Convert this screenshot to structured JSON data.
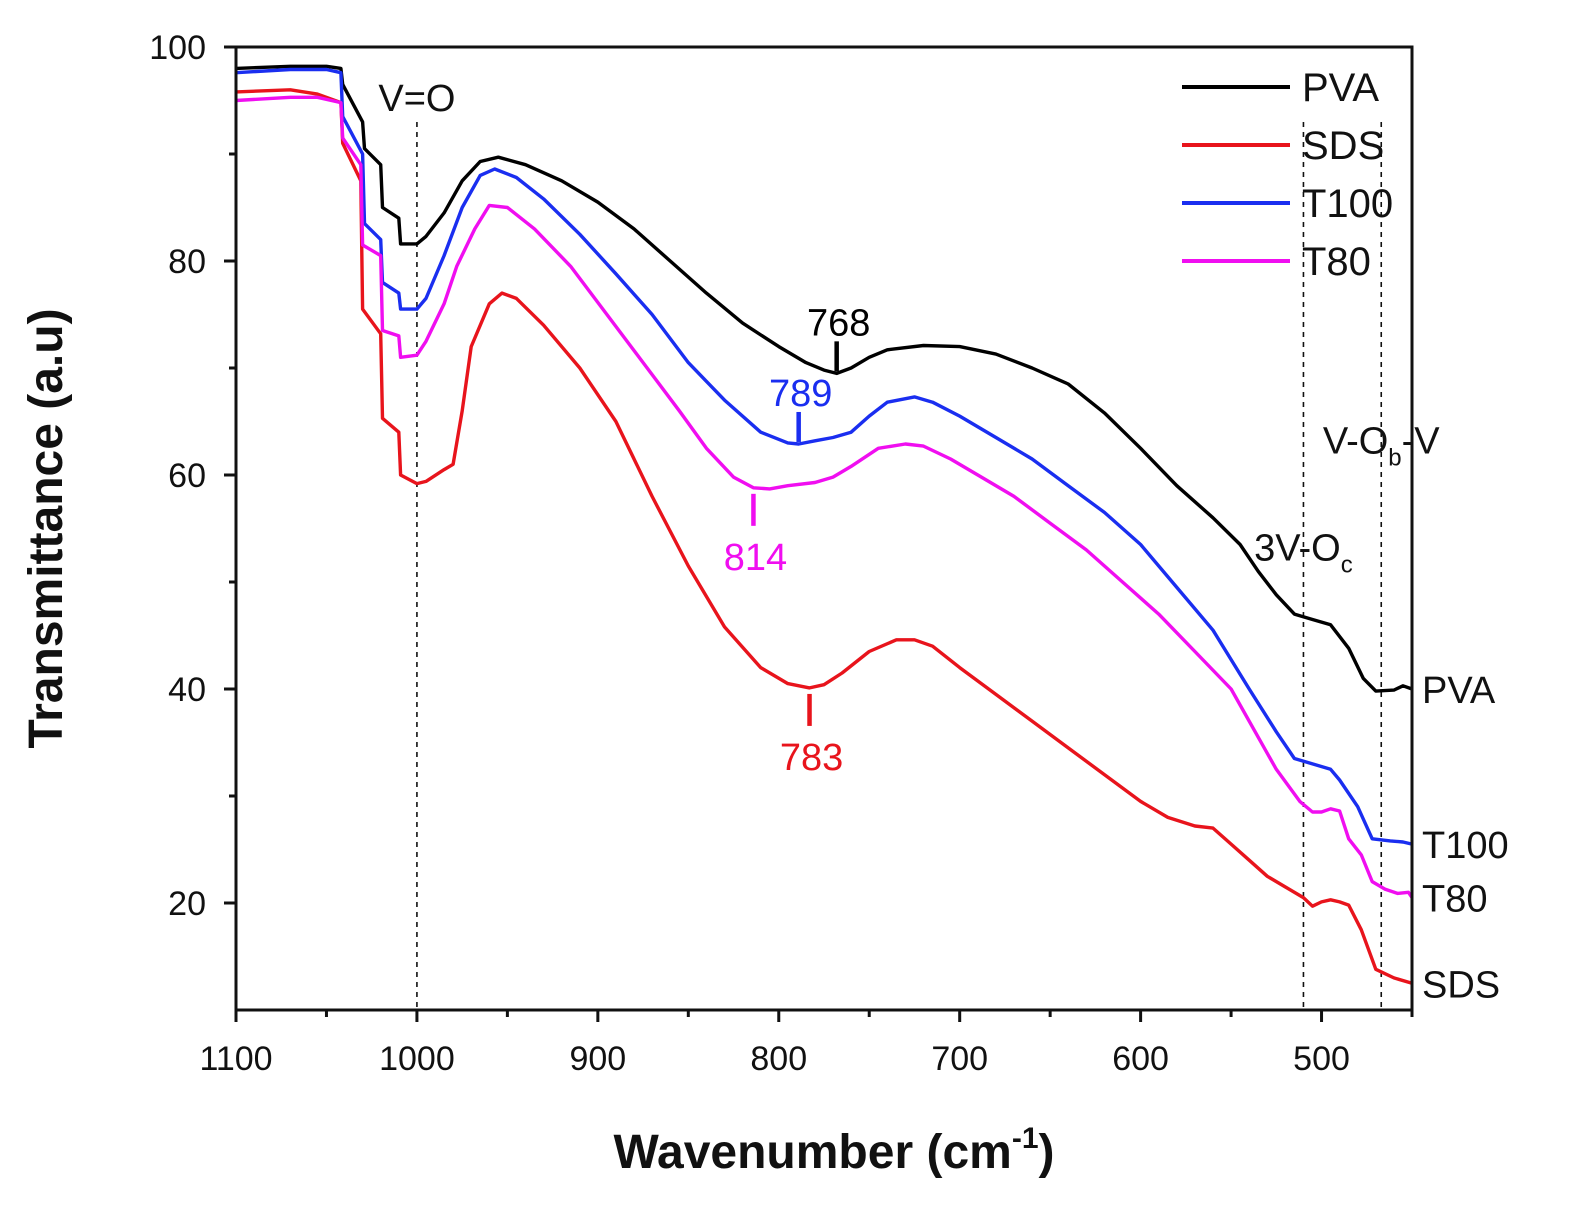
{
  "chart_data": {
    "type": "line",
    "title": "",
    "xlabel": "Wavenumber (cm",
    "xlabel_sup": "-1",
    "xlabel_close": ")",
    "ylabel": "Transmittance (a.u)",
    "xlim": [
      1100,
      450
    ],
    "ylim": [
      10,
      100
    ],
    "x_ticks": [
      1100,
      1000,
      900,
      800,
      700,
      600,
      500
    ],
    "y_ticks": [
      20,
      40,
      60,
      80,
      100
    ],
    "legend_position": "top-right",
    "series": [
      {
        "name": "PVA",
        "color": "#000000",
        "end_label": "PVA",
        "points": [
          [
            1100,
            98.0
          ],
          [
            1070,
            98.2
          ],
          [
            1050,
            98.2
          ],
          [
            1042,
            98.0
          ],
          [
            1041,
            96.5
          ],
          [
            1030,
            93.0
          ],
          [
            1029,
            90.5
          ],
          [
            1020,
            89.0
          ],
          [
            1019,
            85.0
          ],
          [
            1010,
            84.0
          ],
          [
            1009,
            81.6
          ],
          [
            1000,
            81.6
          ],
          [
            995,
            82.3
          ],
          [
            985,
            84.5
          ],
          [
            975,
            87.5
          ],
          [
            965,
            89.3
          ],
          [
            955,
            89.7
          ],
          [
            940,
            89.0
          ],
          [
            920,
            87.5
          ],
          [
            900,
            85.5
          ],
          [
            880,
            83.0
          ],
          [
            860,
            80.0
          ],
          [
            840,
            77.0
          ],
          [
            820,
            74.2
          ],
          [
            800,
            72.0
          ],
          [
            785,
            70.5
          ],
          [
            775,
            69.8
          ],
          [
            768,
            69.5
          ],
          [
            760,
            70.0
          ],
          [
            750,
            71.0
          ],
          [
            740,
            71.7
          ],
          [
            720,
            72.1
          ],
          [
            700,
            72.0
          ],
          [
            680,
            71.3
          ],
          [
            660,
            70.0
          ],
          [
            640,
            68.5
          ],
          [
            620,
            65.8
          ],
          [
            600,
            62.5
          ],
          [
            580,
            59.0
          ],
          [
            560,
            56.0
          ],
          [
            545,
            53.5
          ],
          [
            535,
            51.0
          ],
          [
            525,
            48.8
          ],
          [
            515,
            47.0
          ],
          [
            505,
            46.5
          ],
          [
            495,
            46.0
          ],
          [
            485,
            43.8
          ],
          [
            477,
            41.0
          ],
          [
            470,
            39.8
          ],
          [
            460,
            39.9
          ],
          [
            455,
            40.3
          ],
          [
            450,
            40.0
          ]
        ]
      },
      {
        "name": "SDS",
        "color": "#e8141c",
        "end_label": "SDS",
        "points": [
          [
            1100,
            95.8
          ],
          [
            1070,
            96.0
          ],
          [
            1055,
            95.6
          ],
          [
            1042,
            94.8
          ],
          [
            1041,
            91.0
          ],
          [
            1031,
            87.5
          ],
          [
            1030,
            75.5
          ],
          [
            1020,
            73.2
          ],
          [
            1019,
            65.3
          ],
          [
            1010,
            64.0
          ],
          [
            1009,
            60.0
          ],
          [
            1000,
            59.2
          ],
          [
            995,
            59.4
          ],
          [
            985,
            60.5
          ],
          [
            980,
            61.0
          ],
          [
            975,
            66.0
          ],
          [
            970,
            72.0
          ],
          [
            960,
            76.0
          ],
          [
            953,
            77.0
          ],
          [
            945,
            76.5
          ],
          [
            930,
            74.0
          ],
          [
            910,
            70.0
          ],
          [
            890,
            65.0
          ],
          [
            870,
            58.0
          ],
          [
            850,
            51.5
          ],
          [
            830,
            45.8
          ],
          [
            810,
            42.0
          ],
          [
            795,
            40.5
          ],
          [
            783,
            40.1
          ],
          [
            775,
            40.4
          ],
          [
            765,
            41.5
          ],
          [
            750,
            43.5
          ],
          [
            735,
            44.6
          ],
          [
            725,
            44.6
          ],
          [
            715,
            44.0
          ],
          [
            700,
            42.0
          ],
          [
            680,
            39.5
          ],
          [
            660,
            37.0
          ],
          [
            640,
            34.5
          ],
          [
            620,
            32.0
          ],
          [
            600,
            29.5
          ],
          [
            585,
            28.0
          ],
          [
            570,
            27.2
          ],
          [
            560,
            27.0
          ],
          [
            550,
            25.5
          ],
          [
            540,
            24.0
          ],
          [
            530,
            22.5
          ],
          [
            520,
            21.5
          ],
          [
            510,
            20.5
          ],
          [
            505,
            19.7
          ],
          [
            500,
            20.1
          ],
          [
            495,
            20.3
          ],
          [
            490,
            20.1
          ],
          [
            485,
            19.8
          ],
          [
            478,
            17.5
          ],
          [
            470,
            13.8
          ],
          [
            460,
            13.0
          ],
          [
            450,
            12.5
          ]
        ]
      },
      {
        "name": "T100",
        "color": "#1a2ef0",
        "end_label": "T100",
        "points": [
          [
            1100,
            97.6
          ],
          [
            1070,
            97.9
          ],
          [
            1050,
            97.9
          ],
          [
            1042,
            97.6
          ],
          [
            1041,
            93.5
          ],
          [
            1030,
            90.0
          ],
          [
            1029,
            83.5
          ],
          [
            1020,
            82.0
          ],
          [
            1019,
            78.0
          ],
          [
            1010,
            77.0
          ],
          [
            1009,
            75.5
          ],
          [
            1000,
            75.5
          ],
          [
            995,
            76.5
          ],
          [
            985,
            80.5
          ],
          [
            975,
            85.0
          ],
          [
            965,
            88.0
          ],
          [
            957,
            88.6
          ],
          [
            945,
            87.8
          ],
          [
            930,
            85.8
          ],
          [
            910,
            82.5
          ],
          [
            890,
            78.8
          ],
          [
            870,
            75.0
          ],
          [
            850,
            70.5
          ],
          [
            830,
            67.0
          ],
          [
            810,
            64.0
          ],
          [
            795,
            63.0
          ],
          [
            789,
            62.9
          ],
          [
            780,
            63.2
          ],
          [
            770,
            63.5
          ],
          [
            760,
            64.0
          ],
          [
            750,
            65.5
          ],
          [
            740,
            66.8
          ],
          [
            725,
            67.3
          ],
          [
            715,
            66.8
          ],
          [
            700,
            65.5
          ],
          [
            680,
            63.5
          ],
          [
            660,
            61.5
          ],
          [
            640,
            59.0
          ],
          [
            620,
            56.5
          ],
          [
            600,
            53.5
          ],
          [
            580,
            49.5
          ],
          [
            560,
            45.5
          ],
          [
            540,
            40.0
          ],
          [
            525,
            36.0
          ],
          [
            515,
            33.5
          ],
          [
            505,
            33.0
          ],
          [
            495,
            32.5
          ],
          [
            490,
            31.5
          ],
          [
            480,
            29.0
          ],
          [
            472,
            26.0
          ],
          [
            462,
            25.8
          ],
          [
            455,
            25.7
          ],
          [
            450,
            25.5
          ]
        ]
      },
      {
        "name": "T80",
        "color": "#f00ef0",
        "end_label": "T80",
        "points": [
          [
            1100,
            95.0
          ],
          [
            1070,
            95.3
          ],
          [
            1055,
            95.3
          ],
          [
            1042,
            94.8
          ],
          [
            1041,
            91.5
          ],
          [
            1031,
            89.0
          ],
          [
            1030,
            81.5
          ],
          [
            1020,
            80.5
          ],
          [
            1019,
            73.5
          ],
          [
            1010,
            73.0
          ],
          [
            1009,
            71.0
          ],
          [
            1000,
            71.2
          ],
          [
            995,
            72.5
          ],
          [
            985,
            76.0
          ],
          [
            978,
            79.5
          ],
          [
            968,
            83.0
          ],
          [
            960,
            85.2
          ],
          [
            950,
            85.0
          ],
          [
            935,
            83.0
          ],
          [
            915,
            79.5
          ],
          [
            895,
            75.0
          ],
          [
            875,
            70.5
          ],
          [
            855,
            66.0
          ],
          [
            840,
            62.5
          ],
          [
            825,
            59.8
          ],
          [
            814,
            58.8
          ],
          [
            805,
            58.7
          ],
          [
            795,
            59.0
          ],
          [
            780,
            59.3
          ],
          [
            770,
            59.8
          ],
          [
            760,
            60.8
          ],
          [
            745,
            62.5
          ],
          [
            730,
            62.9
          ],
          [
            720,
            62.7
          ],
          [
            705,
            61.5
          ],
          [
            690,
            60.0
          ],
          [
            670,
            58.0
          ],
          [
            650,
            55.5
          ],
          [
            630,
            53.0
          ],
          [
            610,
            50.0
          ],
          [
            590,
            47.0
          ],
          [
            570,
            43.5
          ],
          [
            550,
            40.0
          ],
          [
            535,
            35.5
          ],
          [
            525,
            32.5
          ],
          [
            512,
            29.5
          ],
          [
            505,
            28.5
          ],
          [
            500,
            28.5
          ],
          [
            495,
            28.8
          ],
          [
            490,
            28.6
          ],
          [
            485,
            26.0
          ],
          [
            478,
            24.5
          ],
          [
            472,
            22.0
          ],
          [
            465,
            21.3
          ],
          [
            458,
            20.9
          ],
          [
            452,
            21.0
          ],
          [
            450,
            20.5
          ]
        ]
      }
    ],
    "vlines": [
      1000,
      510,
      467
    ],
    "band_labels": [
      {
        "text": "V=O",
        "x": 1000,
        "y": 94
      },
      {
        "text": "3V-O",
        "sub": "c",
        "x": 510,
        "y": 52
      },
      {
        "text": "V-O",
        "sub": "b",
        "tail": "-V",
        "x": 467,
        "y": 62
      }
    ],
    "peak_annotations": [
      {
        "label": "768",
        "x": 768,
        "series": "PVA",
        "color": "#000000",
        "side": "above"
      },
      {
        "label": "789",
        "x": 789,
        "series": "T100",
        "color": "#1a2ef0",
        "side": "above"
      },
      {
        "label": "814",
        "x": 814,
        "series": "T80",
        "color": "#f00ef0",
        "side": "below"
      },
      {
        "label": "783",
        "x": 783,
        "series": "SDS",
        "color": "#e8141c",
        "side": "below"
      }
    ]
  }
}
